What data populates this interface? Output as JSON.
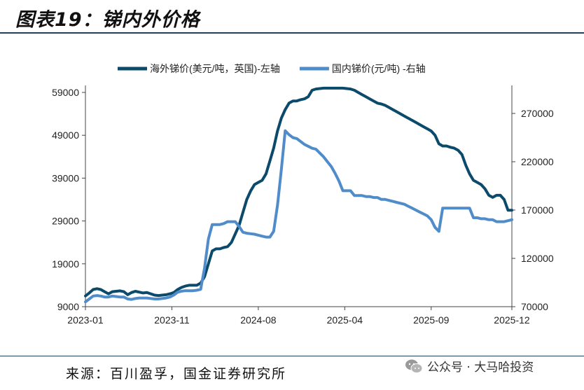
{
  "header": {
    "title": "图表19：锑内外价格"
  },
  "footer": {
    "source": "来源：百川盈孚，国金证券研究所",
    "watermark": "公众号 · 大马哈投资"
  },
  "chart_data": {
    "type": "line",
    "x_ticks": [
      "2023-01",
      "2023-11",
      "2024-08",
      "2025-04",
      "2025-09",
      "2025-12"
    ],
    "left_axis": {
      "ylim": [
        9000,
        59000
      ],
      "ticks": [
        "59000",
        "49000",
        "39000",
        "29000",
        "19000",
        "9000"
      ]
    },
    "right_axis": {
      "ylim": [
        70000,
        270000
      ],
      "ticks": [
        "270000",
        "220000",
        "170000",
        "120000",
        "70000"
      ]
    },
    "legend_position": "top-center",
    "grid": false,
    "series": [
      {
        "name": "海外锑价(美元/吨，英国)-左轴",
        "axis": "left",
        "color": "#0b4a6a",
        "points": [
          [
            0,
            11500
          ],
          [
            1,
            12200
          ],
          [
            2,
            13000
          ],
          [
            3,
            13200
          ],
          [
            4,
            13000
          ],
          [
            5,
            12500
          ],
          [
            6,
            12000
          ],
          [
            7,
            12500
          ],
          [
            8,
            12600
          ],
          [
            9,
            12700
          ],
          [
            10,
            12500
          ],
          [
            11,
            11800
          ],
          [
            12,
            12300
          ],
          [
            13,
            12600
          ],
          [
            14,
            12400
          ],
          [
            15,
            12200
          ],
          [
            16,
            12300
          ],
          [
            17,
            12000
          ],
          [
            18,
            11700
          ],
          [
            19,
            11600
          ],
          [
            20,
            11700
          ],
          [
            21,
            11800
          ],
          [
            22,
            12000
          ],
          [
            23,
            12300
          ],
          [
            24,
            13000
          ],
          [
            25,
            13500
          ],
          [
            26,
            13800
          ],
          [
            27,
            14000
          ],
          [
            28,
            14000
          ],
          [
            29,
            14000
          ],
          [
            30,
            14500
          ],
          [
            31,
            16000
          ],
          [
            32,
            19000
          ],
          [
            33,
            22000
          ],
          [
            34,
            22500
          ],
          [
            35,
            22500
          ],
          [
            36,
            22800
          ],
          [
            37,
            23000
          ],
          [
            38,
            24000
          ],
          [
            39,
            26000
          ],
          [
            40,
            28000
          ],
          [
            41,
            31000
          ],
          [
            42,
            34000
          ],
          [
            43,
            36000
          ],
          [
            44,
            37500
          ],
          [
            45,
            38000
          ],
          [
            46,
            38500
          ],
          [
            47,
            40000
          ],
          [
            48,
            43000
          ],
          [
            49,
            46000
          ],
          [
            50,
            50000
          ],
          [
            51,
            53000
          ],
          [
            52,
            55000
          ],
          [
            53,
            56500
          ],
          [
            54,
            57000
          ],
          [
            55,
            57000
          ],
          [
            56,
            57300
          ],
          [
            57,
            57500
          ],
          [
            58,
            58000
          ],
          [
            59,
            59500
          ],
          [
            60,
            59800
          ],
          [
            61,
            59900
          ],
          [
            62,
            60000
          ],
          [
            63,
            60000
          ],
          [
            64,
            60000
          ],
          [
            65,
            60000
          ],
          [
            66,
            60000
          ],
          [
            67,
            60000
          ],
          [
            68,
            59900
          ],
          [
            69,
            59800
          ],
          [
            70,
            59500
          ],
          [
            71,
            59000
          ],
          [
            72,
            58500
          ],
          [
            73,
            58000
          ],
          [
            74,
            57500
          ],
          [
            75,
            57000
          ],
          [
            76,
            56500
          ],
          [
            77,
            56300
          ],
          [
            78,
            56000
          ],
          [
            79,
            55500
          ],
          [
            80,
            55000
          ],
          [
            81,
            54500
          ],
          [
            82,
            54000
          ],
          [
            83,
            53500
          ],
          [
            84,
            53000
          ],
          [
            85,
            52500
          ],
          [
            86,
            52000
          ],
          [
            87,
            51500
          ],
          [
            88,
            51000
          ],
          [
            89,
            50500
          ],
          [
            90,
            50000
          ],
          [
            91,
            49000
          ],
          [
            92,
            47000
          ],
          [
            93,
            46500
          ],
          [
            94,
            46500
          ],
          [
            95,
            46200
          ],
          [
            96,
            46000
          ],
          [
            97,
            45500
          ],
          [
            98,
            44500
          ],
          [
            99,
            42000
          ],
          [
            100,
            40000
          ],
          [
            101,
            38500
          ],
          [
            102,
            38000
          ],
          [
            103,
            37500
          ],
          [
            104,
            36500
          ],
          [
            105,
            35000
          ],
          [
            106,
            34500
          ],
          [
            107,
            35000
          ],
          [
            108,
            35000
          ],
          [
            109,
            34000
          ],
          [
            110,
            31500
          ],
          [
            111,
            31500
          ]
        ]
      },
      {
        "name": "国内锑价(元/吨) -右轴",
        "axis": "right",
        "color": "#4f8cc9",
        "points": [
          [
            0,
            75000
          ],
          [
            1,
            78000
          ],
          [
            2,
            81000
          ],
          [
            3,
            81500
          ],
          [
            4,
            81000
          ],
          [
            5,
            80000
          ],
          [
            6,
            80000
          ],
          [
            7,
            81000
          ],
          [
            8,
            80500
          ],
          [
            9,
            80000
          ],
          [
            10,
            80000
          ],
          [
            11,
            78000
          ],
          [
            12,
            77500
          ],
          [
            13,
            78500
          ],
          [
            14,
            79000
          ],
          [
            15,
            79000
          ],
          [
            16,
            79000
          ],
          [
            17,
            78500
          ],
          [
            18,
            78000
          ],
          [
            19,
            78000
          ],
          [
            20,
            78500
          ],
          [
            21,
            79000
          ],
          [
            22,
            80000
          ],
          [
            23,
            82000
          ],
          [
            24,
            85000
          ],
          [
            25,
            86000
          ],
          [
            26,
            86500
          ],
          [
            27,
            86500
          ],
          [
            28,
            86500
          ],
          [
            29,
            87000
          ],
          [
            30,
            88000
          ],
          [
            31,
            110000
          ],
          [
            32,
            140000
          ],
          [
            33,
            155000
          ],
          [
            34,
            155000
          ],
          [
            35,
            155000
          ],
          [
            36,
            156000
          ],
          [
            37,
            158000
          ],
          [
            38,
            158000
          ],
          [
            39,
            158000
          ],
          [
            40,
            153000
          ],
          [
            41,
            147000
          ],
          [
            42,
            146000
          ],
          [
            43,
            145500
          ],
          [
            44,
            145000
          ],
          [
            45,
            144000
          ],
          [
            46,
            143000
          ],
          [
            47,
            142000
          ],
          [
            48,
            142000
          ],
          [
            49,
            148000
          ],
          [
            50,
            175000
          ],
          [
            51,
            212000
          ],
          [
            52,
            252000
          ],
          [
            53,
            248000
          ],
          [
            54,
            245000
          ],
          [
            55,
            244000
          ],
          [
            56,
            241000
          ],
          [
            57,
            238000
          ],
          [
            58,
            236000
          ],
          [
            59,
            234000
          ],
          [
            60,
            233000
          ],
          [
            61,
            229000
          ],
          [
            62,
            225000
          ],
          [
            63,
            220000
          ],
          [
            64,
            215000
          ],
          [
            65,
            208000
          ],
          [
            66,
            200000
          ],
          [
            67,
            190000
          ],
          [
            68,
            190000
          ],
          [
            69,
            190000
          ],
          [
            70,
            185000
          ],
          [
            71,
            185000
          ],
          [
            72,
            185000
          ],
          [
            73,
            184000
          ],
          [
            74,
            184000
          ],
          [
            75,
            183000
          ],
          [
            76,
            183000
          ],
          [
            77,
            181000
          ],
          [
            78,
            181000
          ],
          [
            79,
            180000
          ],
          [
            80,
            179000
          ],
          [
            81,
            178000
          ],
          [
            82,
            177000
          ],
          [
            83,
            176000
          ],
          [
            84,
            174000
          ],
          [
            85,
            172000
          ],
          [
            86,
            170000
          ],
          [
            87,
            168000
          ],
          [
            88,
            166000
          ],
          [
            89,
            164000
          ],
          [
            90,
            160000
          ],
          [
            91,
            152000
          ],
          [
            92,
            148000
          ],
          [
            93,
            172000
          ],
          [
            94,
            172000
          ],
          [
            95,
            172000
          ],
          [
            96,
            172000
          ],
          [
            97,
            172000
          ],
          [
            98,
            172000
          ],
          [
            99,
            172000
          ],
          [
            100,
            172000
          ],
          [
            101,
            162000
          ],
          [
            102,
            162000
          ],
          [
            103,
            161000
          ],
          [
            104,
            161000
          ],
          [
            105,
            160000
          ],
          [
            106,
            160000
          ],
          [
            107,
            158000
          ],
          [
            108,
            158000
          ],
          [
            109,
            158000
          ],
          [
            110,
            159000
          ],
          [
            111,
            160000
          ]
        ]
      }
    ]
  }
}
